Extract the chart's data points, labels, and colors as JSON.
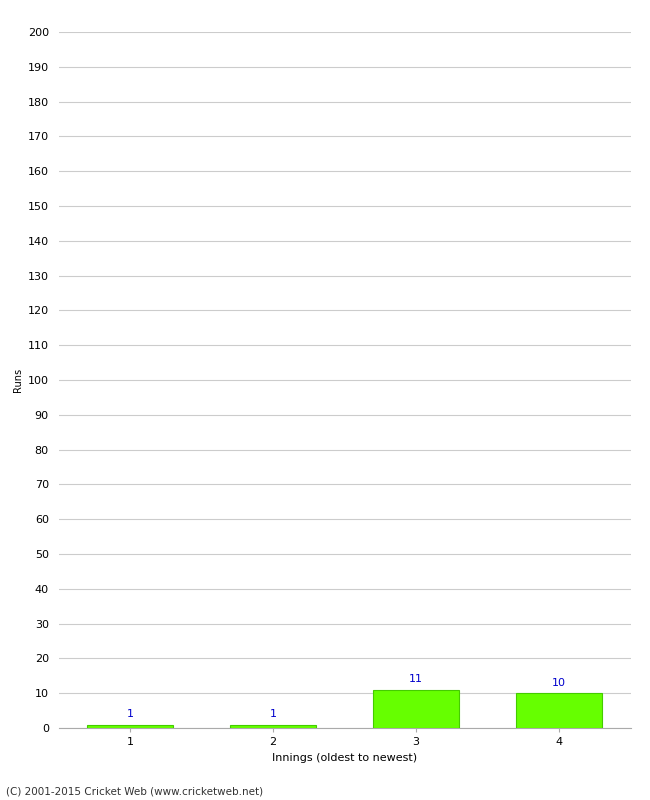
{
  "categories": [
    1,
    2,
    3,
    4
  ],
  "values": [
    1,
    1,
    11,
    10
  ],
  "bar_color": "#66ff00",
  "bar_edge_color": "#44cc00",
  "label_color": "#0000cc",
  "ylabel": "Runs",
  "xlabel": "Innings (oldest to newest)",
  "ylim": [
    0,
    200
  ],
  "yticks": [
    0,
    10,
    20,
    30,
    40,
    50,
    60,
    70,
    80,
    90,
    100,
    110,
    120,
    130,
    140,
    150,
    160,
    170,
    180,
    190,
    200
  ],
  "background_color": "#ffffff",
  "footer_text": "(C) 2001-2015 Cricket Web (www.cricketweb.net)",
  "grid_color": "#cccccc",
  "label_fontsize": 8,
  "axis_fontsize": 8,
  "ylabel_fontsize": 7,
  "footer_fontsize": 7.5
}
